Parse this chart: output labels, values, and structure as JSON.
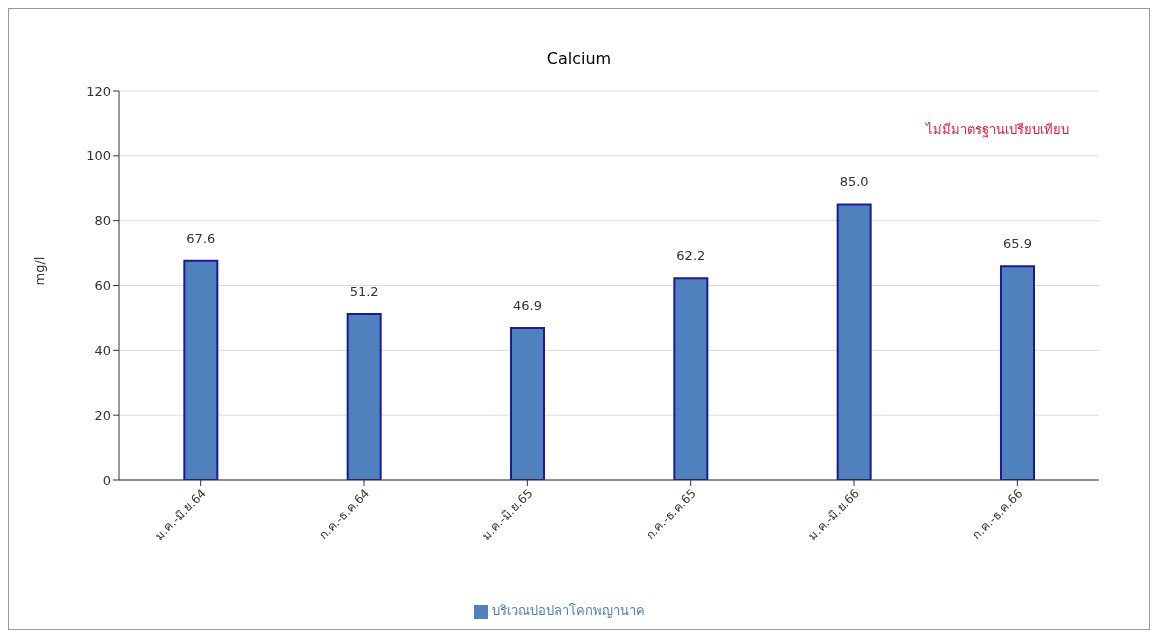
{
  "chart_data": {
    "type": "bar",
    "title": "Calcium",
    "ylabel": "mg/l",
    "categories": [
      "ม.ค.-มิ.ย.64",
      "ก.ค.-ธ.ค.64",
      "ม.ค.-มิ.ย.65",
      "ก.ค.-ธ.ค.65",
      "ม.ค.-มิ.ย.66",
      "ก.ค.-ธ.ค.66"
    ],
    "series": [
      {
        "name": "บริเวณบ่อปลาโคกพญานาค",
        "color": "#4f81bd",
        "values": [
          67.6,
          51.2,
          46.9,
          62.2,
          85.0,
          65.9
        ],
        "value_labels": [
          "67.6",
          "51.2",
          "46.9",
          "62.2",
          "85.0",
          "65.9"
        ]
      }
    ],
    "ylim": [
      0,
      120
    ],
    "yticks": [
      0,
      20,
      40,
      60,
      80,
      100,
      120
    ],
    "grid": "y",
    "legend": "bottom",
    "annotations": [
      "ไม่มีมาตรฐานเปรียบเทียบ"
    ]
  }
}
